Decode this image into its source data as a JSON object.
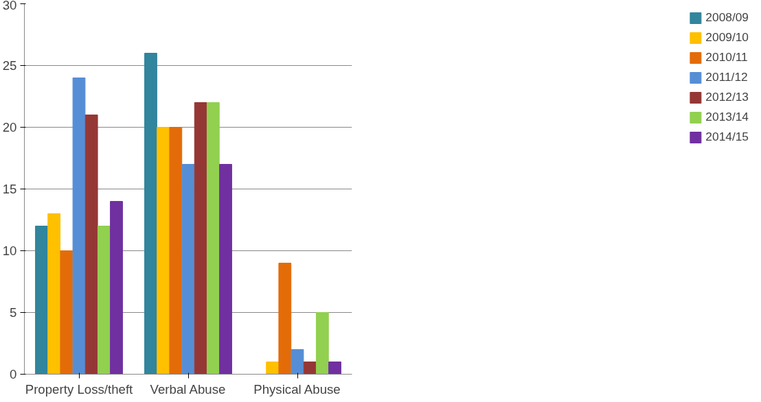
{
  "chart_data": {
    "type": "bar",
    "categories": [
      "Property Loss/theft",
      "Verbal Abuse",
      "Physical Abuse"
    ],
    "series": [
      {
        "name": "2008/09",
        "color": "#31859c",
        "values": [
          12,
          26,
          0
        ]
      },
      {
        "name": "2009/10",
        "color": "#ffc000",
        "values": [
          13,
          20,
          1
        ]
      },
      {
        "name": "2010/11",
        "color": "#e36c09",
        "values": [
          10,
          20,
          9
        ]
      },
      {
        "name": "2011/12",
        "color": "#558ed5",
        "values": [
          24,
          17,
          2
        ]
      },
      {
        "name": "2012/13",
        "color": "#953735",
        "values": [
          21,
          22,
          1
        ]
      },
      {
        "name": "2013/14",
        "color": "#92d050",
        "values": [
          12,
          22,
          5
        ]
      },
      {
        "name": "2014/15",
        "color": "#7030a0",
        "values": [
          14,
          17,
          1
        ]
      }
    ],
    "ylim": [
      0,
      30
    ],
    "yticks": [
      0,
      5,
      10,
      15,
      20,
      25,
      30
    ],
    "grid": "y",
    "legend": "right"
  }
}
